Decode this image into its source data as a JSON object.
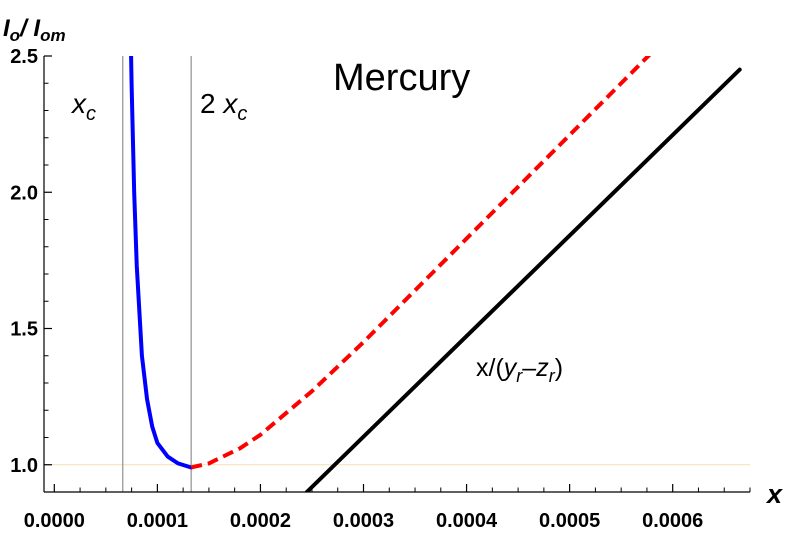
{
  "chart_data": {
    "type": "line",
    "title": "Mercury",
    "xlabel": "x",
    "ylabel": {
      "main": "I",
      "main_sub": "o",
      "sep": "/ ",
      "ref": "I",
      "ref_sub": "om"
    },
    "xlim": [
      -1e-05,
      0.000675
    ],
    "ylim": [
      0.9,
      2.5
    ],
    "x_ticks": [
      "0.0000",
      "0.0001",
      "0.0002",
      "0.0003",
      "0.0004",
      "0.0005",
      "0.0006"
    ],
    "x_tick_values": [
      0,
      0.0001,
      0.0002,
      0.0003,
      0.0004,
      0.0005,
      0.0006
    ],
    "y_ticks": [
      "1.0",
      "1.5",
      "2.0",
      "2.5"
    ],
    "y_tick_values": [
      1.0,
      1.5,
      2.0,
      2.5
    ],
    "grid": false,
    "vertical_markers": [
      {
        "label_main": "x",
        "label_sub": "c",
        "x": 6.64e-05
      },
      {
        "label_prefix": "2 ",
        "label_main": "x",
        "label_sub": "c",
        "x": 0.0001328
      }
    ],
    "reference_line": {
      "y": 1.0,
      "color": "#f5deb3"
    },
    "asymptote_label": {
      "prefix": "x/(",
      "y_main": "y",
      "y_sub": "r",
      "dash": "–",
      "z_main": "z",
      "z_sub": "r",
      "suffix": ")"
    },
    "series": [
      {
        "style": "solid",
        "color": "#0000ff",
        "x": [
          7.45e-05,
          7.5e-05,
          7.75e-05,
          8e-05,
          8.5e-05,
          9e-05,
          9.5e-05,
          0.0001,
          0.00011,
          0.00012,
          0.0001328
        ],
        "y": [
          2.5,
          2.395,
          2.0,
          1.73,
          1.4,
          1.24,
          1.14,
          1.08,
          1.03,
          1.005,
          0.99
        ]
      },
      {
        "style": "dashed",
        "color": "#ff0000",
        "x": [
          0.0001328,
          0.00015,
          0.00018,
          0.0002,
          0.00025,
          0.0003,
          0.00035,
          0.0004,
          0.00045,
          0.0005,
          0.00055,
          0.0006
        ],
        "y": [
          0.99,
          1.005,
          1.06,
          1.11,
          1.27,
          1.45,
          1.64,
          1.83,
          2.02,
          2.21,
          2.4,
          2.59
        ]
      },
      {
        "style": "solid",
        "color": "#000000",
        "x": [
          0.000245,
          0.000665
        ],
        "y": [
          0.9,
          2.45
        ]
      }
    ]
  }
}
